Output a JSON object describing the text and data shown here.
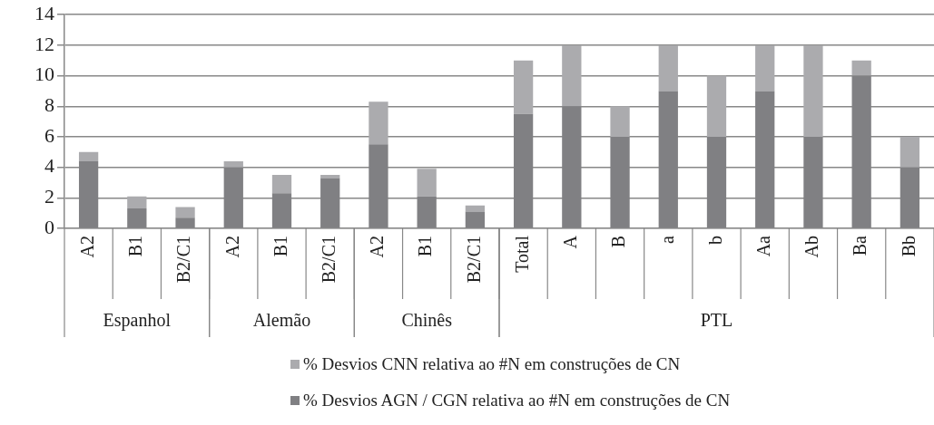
{
  "chart_data": {
    "type": "bar",
    "stacked": true,
    "categories": [
      "A2",
      "B1",
      "B2/C1",
      "A2",
      "B1",
      "B2/C1",
      "A2",
      "B1",
      "B2/C1",
      "Total",
      "A",
      "B",
      "a",
      "b",
      "Aa",
      "Ab",
      "Ba",
      "Bb"
    ],
    "series": [
      {
        "name": "% Desvios AGN / CGN relativa ao #N em construções de CN",
        "color": "#808083",
        "values": [
          4.4,
          1.3,
          0.7,
          4.0,
          2.3,
          3.3,
          5.5,
          2.1,
          1.1,
          7.5,
          8,
          6,
          9,
          6,
          9,
          6,
          10,
          4
        ]
      },
      {
        "name": "% Desvios CNN relativa ao #N em construções de CN",
        "color": "#ababae",
        "values": [
          0.6,
          0.8,
          0.7,
          0.4,
          1.2,
          0.2,
          2.8,
          1.8,
          0.4,
          3.5,
          4,
          2,
          3,
          4,
          3,
          6,
          1,
          2
        ]
      }
    ],
    "ylim": [
      0,
      14
    ],
    "yticks": [
      0,
      2,
      4,
      6,
      8,
      10,
      12,
      14
    ],
    "grid": "y",
    "legend": "bottom",
    "annotations": [
      "Espanhol",
      "Alemão",
      "Chinês",
      "PTL"
    ]
  }
}
